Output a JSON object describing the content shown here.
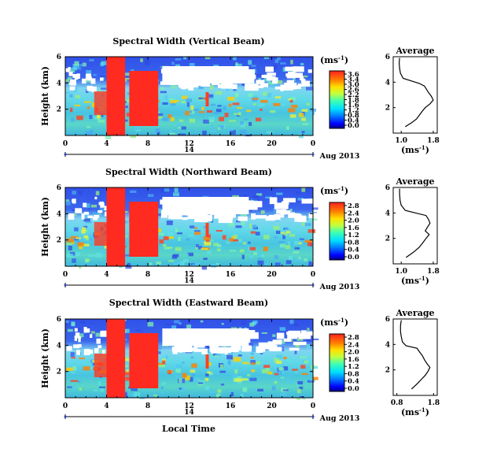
{
  "chart_data": [
    {
      "type": "heatmap",
      "title": "Spectral Width (Vertical Beam)",
      "ylabel": "Height (km)",
      "yticks": [
        "6",
        "4",
        "2"
      ],
      "ylim": [
        0,
        6
      ],
      "xticks": [
        "0",
        "4",
        "8",
        "12",
        "16",
        "20",
        "0"
      ],
      "xlim": [
        0,
        24
      ],
      "date_marker": "14",
      "date_label": "Aug 2013",
      "colorbar": {
        "unit": "(ms",
        "unit_sup": "-1",
        "unit_close": ")",
        "ticks": [
          "3.6",
          "3.4",
          "3.0",
          "2.6",
          "2.2",
          "1.8",
          "1.6",
          "1.2",
          "0.8",
          "0.4",
          "0.0"
        ]
      },
      "average": {
        "title": "Average",
        "xticks": [
          "1.0",
          "1.8"
        ],
        "xlim": [
          0.8,
          1.9
        ],
        "yticks": [
          "6",
          "4",
          "2"
        ],
        "xlabel": "(ms",
        "xlabel_sup": "-1",
        "xlabel_close": ")",
        "profile": [
          [
            1.1,
            0.5
          ],
          [
            1.25,
            0.8
          ],
          [
            1.38,
            1.1
          ],
          [
            1.45,
            1.4
          ],
          [
            1.52,
            1.7
          ],
          [
            1.6,
            2.0
          ],
          [
            1.72,
            2.3
          ],
          [
            1.8,
            2.6
          ],
          [
            1.75,
            2.9
          ],
          [
            1.68,
            3.2
          ],
          [
            1.62,
            3.5
          ],
          [
            1.58,
            3.7
          ],
          [
            1.45,
            3.9
          ],
          [
            1.25,
            4.1
          ],
          [
            1.05,
            4.3
          ],
          [
            0.98,
            4.7
          ],
          [
            0.96,
            5.1
          ],
          [
            0.95,
            5.5
          ],
          [
            0.96,
            5.9
          ]
        ]
      }
    },
    {
      "type": "heatmap",
      "title": "Spectral Width (Northward Beam)",
      "ylabel": "Height (km)",
      "yticks": [
        "6",
        "4",
        "2"
      ],
      "ylim": [
        0,
        6
      ],
      "xticks": [
        "0",
        "4",
        "8",
        "12",
        "16",
        "20",
        "0"
      ],
      "xlim": [
        0,
        24
      ],
      "date_marker": "14",
      "date_label": "Aug 2013",
      "colorbar": {
        "unit": "(ms",
        "unit_sup": "-1",
        "unit_close": ")",
        "ticks": [
          "2.8",
          "2.4",
          "2.0",
          "1.6",
          "1.2",
          "0.8",
          "0.4",
          "0.0"
        ]
      },
      "average": {
        "title": "Average",
        "xticks": [
          "1.0",
          "1.8"
        ],
        "xlim": [
          0.8,
          1.9
        ],
        "yticks": [
          "6",
          "4",
          "2"
        ],
        "xlabel": "(ms",
        "xlabel_sup": "-1",
        "xlabel_close": ")",
        "profile": [
          [
            1.12,
            0.5
          ],
          [
            1.3,
            0.9
          ],
          [
            1.45,
            1.3
          ],
          [
            1.55,
            1.7
          ],
          [
            1.62,
            2.0
          ],
          [
            1.7,
            2.3
          ],
          [
            1.6,
            2.6
          ],
          [
            1.66,
            2.9
          ],
          [
            1.72,
            3.2
          ],
          [
            1.68,
            3.5
          ],
          [
            1.62,
            3.8
          ],
          [
            1.35,
            4.0
          ],
          [
            1.1,
            4.2
          ],
          [
            1.0,
            4.6
          ],
          [
            0.97,
            5.0
          ],
          [
            0.96,
            5.5
          ],
          [
            0.96,
            5.9
          ]
        ]
      }
    },
    {
      "type": "heatmap",
      "title": "Spectral Width (Eastward Beam)",
      "ylabel": "Height (km)",
      "yticks": [
        "6",
        "4",
        "2"
      ],
      "ylim": [
        0,
        6
      ],
      "xticks": [
        "0",
        "4",
        "8",
        "12",
        "16",
        "20",
        "0"
      ],
      "xlim": [
        0,
        24
      ],
      "date_marker": "14",
      "date_label": "Aug 2013",
      "xlabel": "Local Time",
      "colorbar": {
        "unit": "(ms",
        "unit_sup": "-1",
        "unit_close": ")",
        "ticks": [
          "2.8",
          "2.4",
          "2.0",
          "1.6",
          "1.2",
          "0.8",
          "0.4",
          "0.0"
        ]
      },
      "average": {
        "title": "Average",
        "xticks": [
          "0.8",
          "1.8"
        ],
        "xlim": [
          0.7,
          1.9
        ],
        "yticks": [
          "6",
          "4",
          "2"
        ],
        "xlabel": "(ms",
        "xlabel_sup": "-1",
        "xlabel_close": ")",
        "profile": [
          [
            1.2,
            0.5
          ],
          [
            1.35,
            0.9
          ],
          [
            1.48,
            1.3
          ],
          [
            1.58,
            1.6
          ],
          [
            1.65,
            1.9
          ],
          [
            1.7,
            2.2
          ],
          [
            1.62,
            2.5
          ],
          [
            1.55,
            2.8
          ],
          [
            1.5,
            3.1
          ],
          [
            1.42,
            3.4
          ],
          [
            1.35,
            3.7
          ],
          [
            1.05,
            3.9
          ],
          [
            0.95,
            4.2
          ],
          [
            0.92,
            4.6
          ],
          [
            0.9,
            5.0
          ],
          [
            0.9,
            5.5
          ],
          [
            0.92,
            5.9
          ]
        ]
      }
    }
  ]
}
